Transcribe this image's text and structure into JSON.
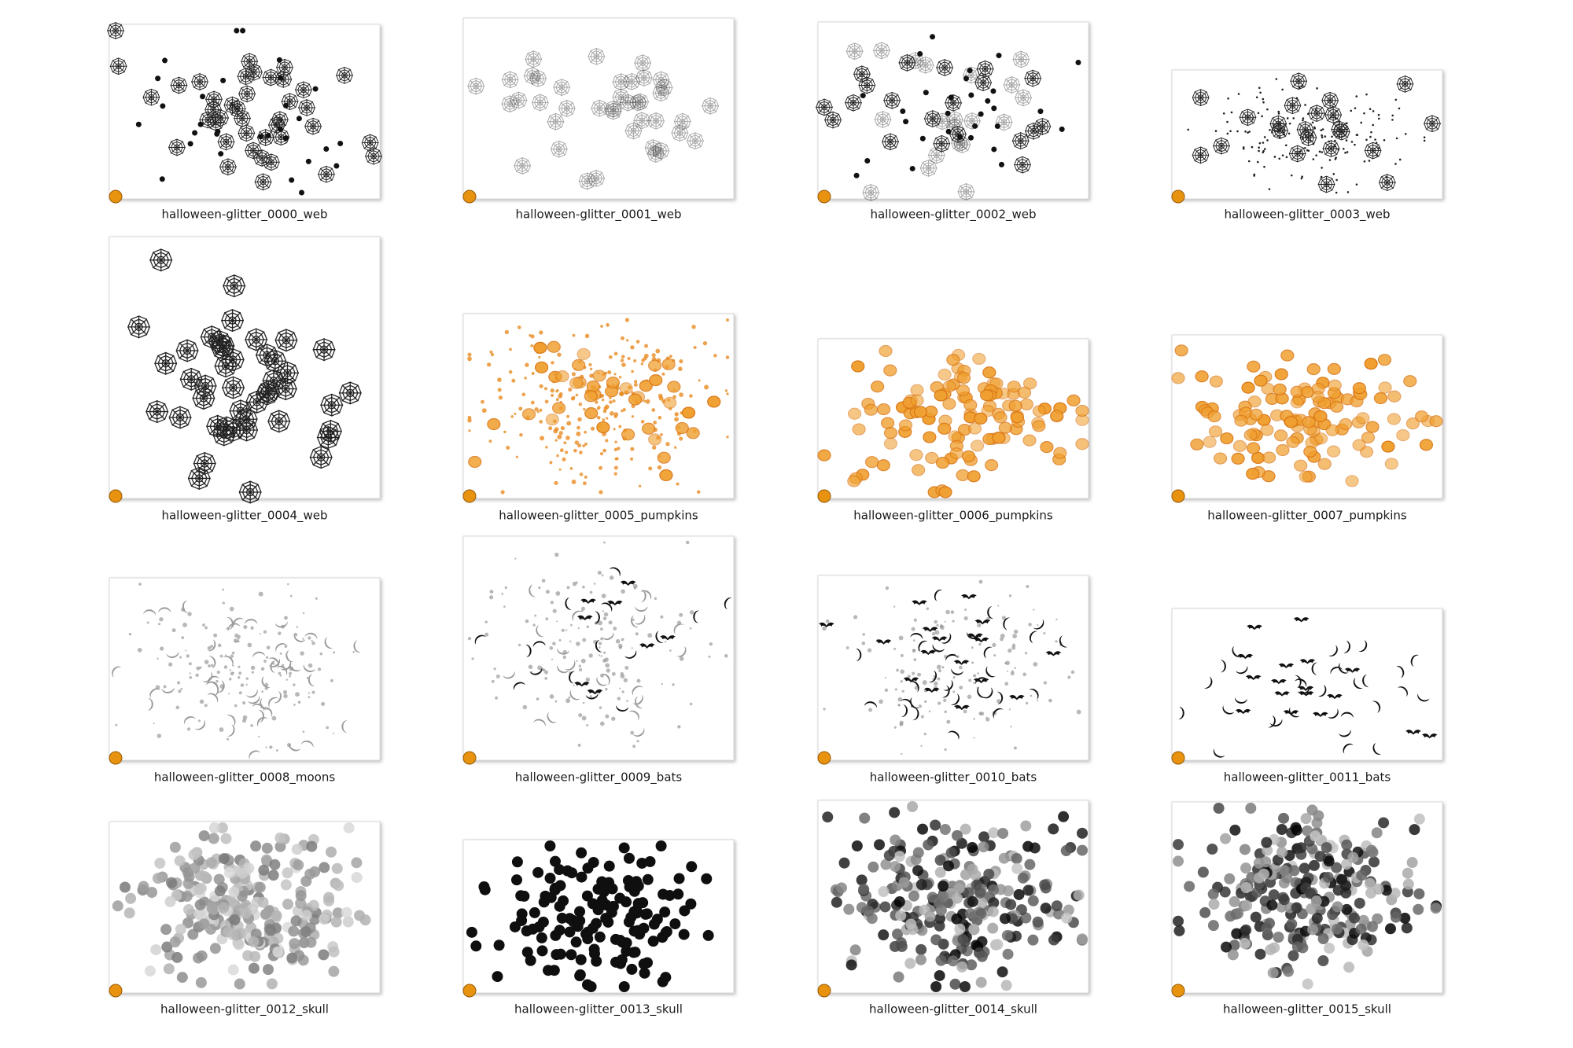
{
  "items": [
    {
      "label": "halloween-glitter_0000_web"
    },
    {
      "label": "halloween-glitter_0001_web"
    },
    {
      "label": "halloween-glitter_0002_web"
    },
    {
      "label": "halloween-glitter_0003_web"
    },
    {
      "label": "halloween-glitter_0004_web"
    },
    {
      "label": "halloween-glitter_0005_pumpkins"
    },
    {
      "label": "halloween-glitter_0006_pumpkins"
    },
    {
      "label": "halloween-glitter_0007_pumpkins"
    },
    {
      "label": "halloween-glitter_0008_moons"
    },
    {
      "label": "halloween-glitter_0009_bats"
    },
    {
      "label": "halloween-glitter_0010_bats"
    },
    {
      "label": "halloween-glitter_0011_bats"
    },
    {
      "label": "halloween-glitter_0012_skull"
    },
    {
      "label": "halloween-glitter_0013_skull"
    },
    {
      "label": "halloween-glitter_0014_skull"
    },
    {
      "label": "halloween-glitter_0015_skull"
    }
  ]
}
